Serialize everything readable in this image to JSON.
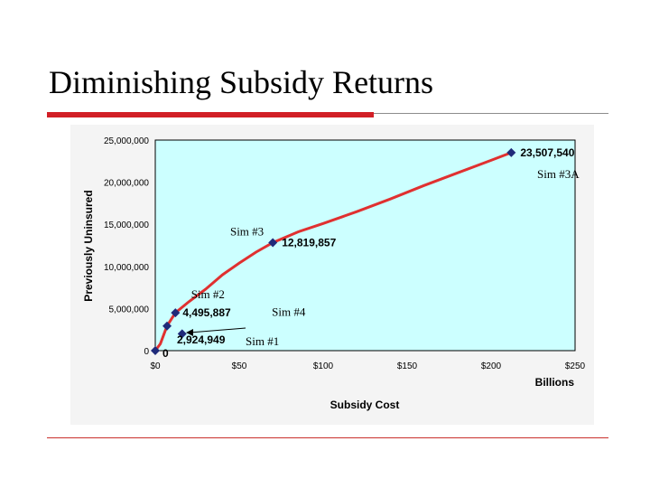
{
  "slide": {
    "title": "Diminishing Subsidy Returns"
  },
  "chart_data": {
    "type": "line",
    "title": "",
    "xlabel": "Subsidy Cost",
    "xunit": "Billions",
    "ylabel": "Previously Uninsured",
    "xlim": [
      0,
      250
    ],
    "ylim": [
      0,
      25000000
    ],
    "x_ticks": [
      "$0",
      "$50",
      "$100",
      "$150",
      "$200",
      "$250"
    ],
    "y_ticks": [
      "0",
      "5,000,000",
      "10,000,000",
      "15,000,000",
      "20,000,000",
      "25,000,000"
    ],
    "background_color": "#ccffff",
    "curve_color": "#e03030",
    "marker_color": "#1f2a7a",
    "grid": false,
    "points": [
      {
        "x": 0,
        "y": 0,
        "label": "0",
        "sim": ""
      },
      {
        "x": 7,
        "y": 2924949,
        "label": "2,924,949",
        "sim": "Sim #1"
      },
      {
        "x": 12,
        "y": 4495887,
        "label": "4,495,887",
        "sim": "Sim #2"
      },
      {
        "x": 70,
        "y": 12819857,
        "label": "12,819,857",
        "sim": "Sim #3"
      },
      {
        "x": 212,
        "y": 23507540,
        "label": "23,507,540",
        "sim": "Sim #3A"
      },
      {
        "x": 16,
        "y": 2000000,
        "label": "",
        "sim": "Sim #4"
      }
    ],
    "curve": [
      [
        0,
        0
      ],
      [
        3,
        800000
      ],
      [
        7,
        2924949
      ],
      [
        12,
        4495887
      ],
      [
        20,
        5800000
      ],
      [
        30,
        7300000
      ],
      [
        40,
        9000000
      ],
      [
        50,
        10400000
      ],
      [
        60,
        11700000
      ],
      [
        70,
        12819857
      ],
      [
        85,
        14100000
      ],
      [
        100,
        15100000
      ],
      [
        120,
        16500000
      ],
      [
        140,
        18000000
      ],
      [
        160,
        19600000
      ],
      [
        180,
        21100000
      ],
      [
        200,
        22600000
      ],
      [
        212,
        23507540
      ]
    ]
  }
}
